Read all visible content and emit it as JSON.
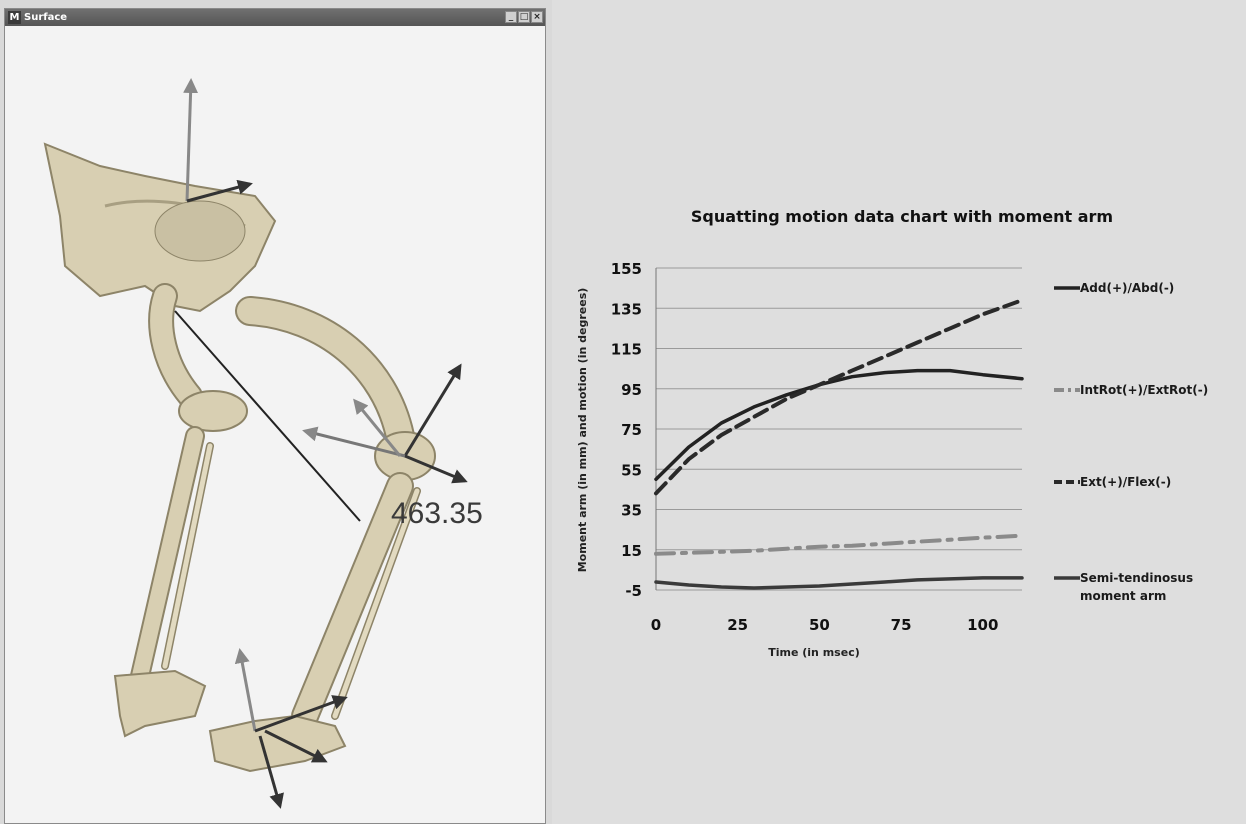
{
  "window": {
    "title": "Surface",
    "app_icon_glyph": "M",
    "buttons": [
      "_",
      "□",
      "×"
    ],
    "measurement_value": "463.35"
  },
  "chart_data": {
    "type": "line",
    "title": "Squatting motion data chart with moment arm",
    "xlabel": "Time (in msec)",
    "ylabel": "Moment arm (in mm) and motion (in degrees)",
    "xlim": [
      0,
      112
    ],
    "ylim": [
      -5,
      155
    ],
    "x_ticks": [
      0,
      25,
      50,
      75,
      100
    ],
    "y_ticks": [
      -5,
      15,
      35,
      55,
      75,
      95,
      115,
      135,
      155
    ],
    "grid": true,
    "legend_position": "right",
    "x": [
      0,
      10,
      20,
      30,
      40,
      50,
      60,
      70,
      80,
      90,
      100,
      112
    ],
    "series": [
      {
        "name": "Add(+)/Abd(-)",
        "style": "solid",
        "color": "#222222",
        "values": [
          50,
          66,
          78,
          86,
          92,
          97,
          101,
          103,
          104,
          104,
          102,
          100
        ]
      },
      {
        "name": "IntRot(+)/ExtRot(-)",
        "style": "dashdot",
        "color": "#8a8a8a",
        "values": [
          13,
          13.5,
          14,
          14.5,
          15.5,
          16.5,
          17,
          18,
          19,
          20,
          21,
          22
        ]
      },
      {
        "name": "Ext(+)/Flex(-)",
        "style": "dashed",
        "color": "#2a2a2a",
        "values": [
          43,
          60,
          72,
          81,
          90,
          97,
          104,
          111,
          118,
          125,
          132,
          139
        ]
      },
      {
        "name": "Semi-tendinosus\nmoment arm",
        "style": "solid",
        "color": "#3a3a3a",
        "values": [
          -1,
          -2.5,
          -3.5,
          -4,
          -3.5,
          -3,
          -2,
          -1,
          0,
          0.5,
          1,
          1
        ]
      }
    ]
  },
  "colors": {
    "background": "#dedede",
    "grid": "#9a9a9a",
    "bone": "#d8cfb2"
  }
}
